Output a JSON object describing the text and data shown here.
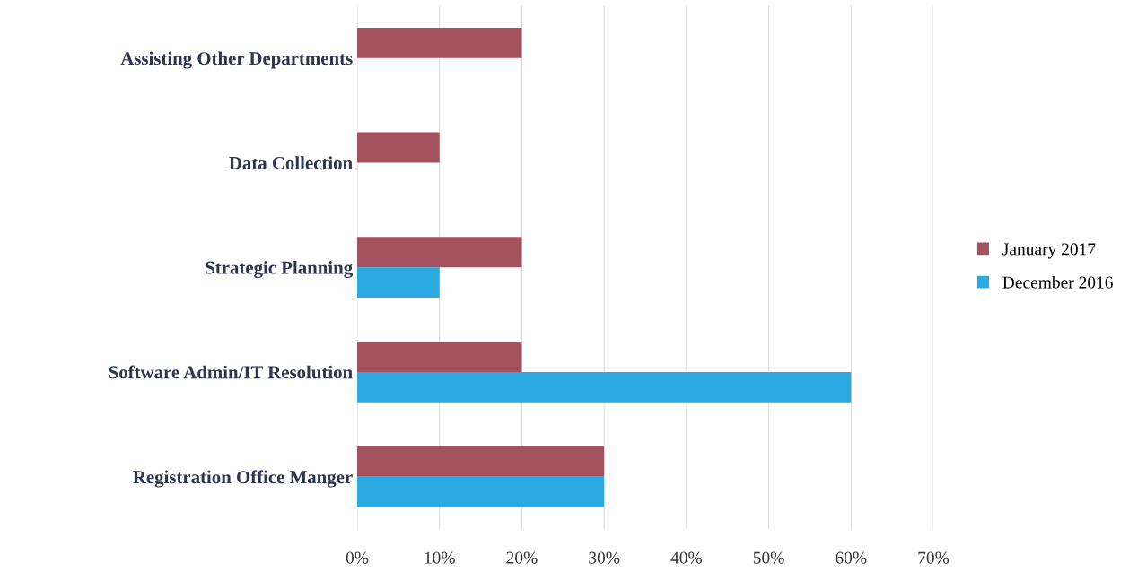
{
  "chart_data": {
    "type": "bar",
    "orientation": "horizontal",
    "categories": [
      "Assisting Other Departments",
      "Data Collection",
      "Strategic Planning",
      "Software Admin/IT Resolution",
      "Registration Office Manger"
    ],
    "series": [
      {
        "name": "January 2017",
        "color": "#a3525e",
        "values": [
          20,
          10,
          20,
          20,
          30
        ]
      },
      {
        "name": "December 2016",
        "color": "#2ba9e1",
        "values": [
          null,
          null,
          10,
          60,
          30
        ]
      }
    ],
    "xlim": [
      0,
      70
    ],
    "xticks": [
      {
        "value": 0,
        "label": "0%"
      },
      {
        "value": 10,
        "label": "10%"
      },
      {
        "value": 20,
        "label": "20%"
      },
      {
        "value": 30,
        "label": "30%"
      },
      {
        "value": 40,
        "label": "40%"
      },
      {
        "value": 50,
        "label": "50%"
      },
      {
        "value": 60,
        "label": "60%"
      },
      {
        "value": 70,
        "label": "70%"
      }
    ],
    "grid": "x",
    "legend": "right"
  }
}
